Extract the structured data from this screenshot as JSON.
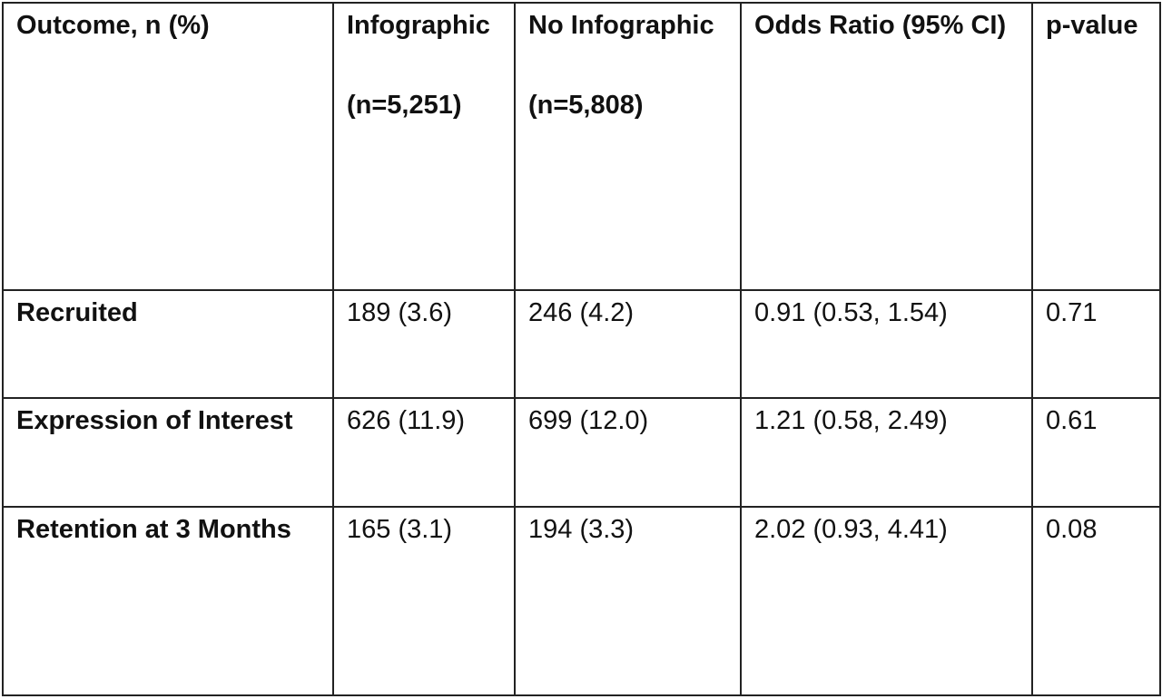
{
  "table": {
    "headers": [
      "Outcome, n (%)",
      "Infographic (n=5,251)",
      "No Infographic (n=5,808)",
      "Odds Ratio (95% CI)",
      "p-value"
    ],
    "rows": [
      {
        "outcome": "Recruited",
        "infographic": "189 (3.6)",
        "no_infographic": "246 (4.2)",
        "odds_ratio": "0.91 (0.53, 1.54)",
        "p_value": "0.71"
      },
      {
        "outcome": "Expression of Interest",
        "infographic": "626 (11.9)",
        "no_infographic": "699 (12.0)",
        "odds_ratio": "1.21 (0.58, 2.49)",
        "p_value": "0.61"
      },
      {
        "outcome": "Retention at 3 Months",
        "infographic": "165 (3.1)",
        "no_infographic": "194 (3.3)",
        "odds_ratio": "2.02 (0.93, 4.41)",
        "p_value": "0.08"
      }
    ]
  }
}
